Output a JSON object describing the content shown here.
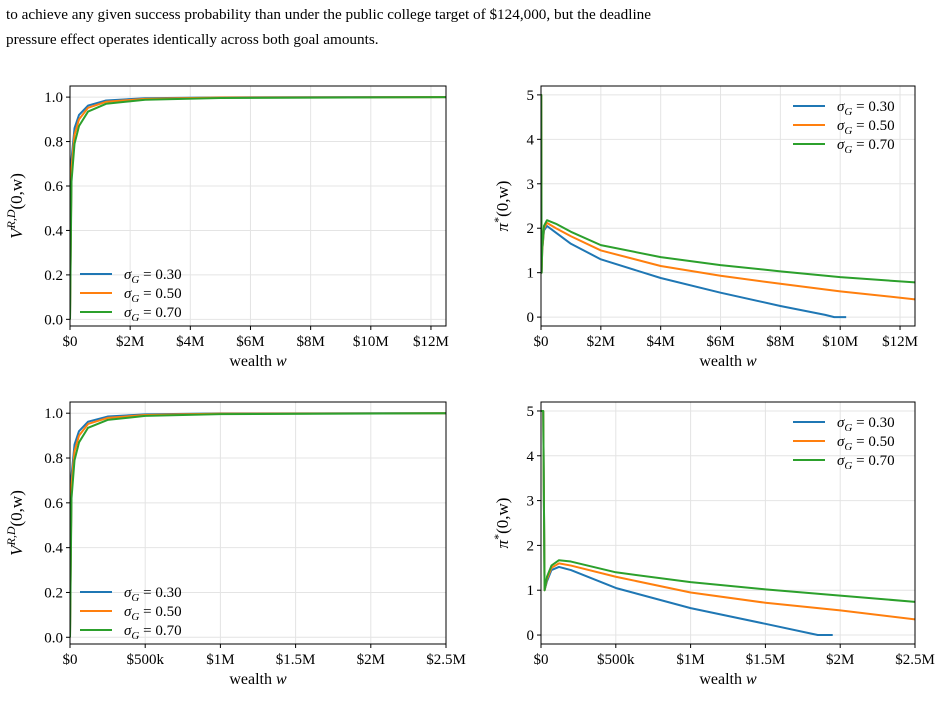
{
  "paragraph": {
    "line1": "to achieve any given success probability than under the public college target of $124,000, but the deadline",
    "line2": "pressure effect operates identically across both goal amounts."
  },
  "colors": {
    "series1": "#1f77b4",
    "series2": "#ff7f0e",
    "series3": "#2ca02c",
    "grid": "#e4e4e4"
  },
  "chart_data": [
    {
      "type": "line",
      "panel": "top-left",
      "xlabel": "wealth w",
      "ylabel": "V^{R,D}(0,w)",
      "xlim": [
        0,
        12500000
      ],
      "ylim": [
        -0.03,
        1.05
      ],
      "xticks": [
        0,
        2000000,
        4000000,
        6000000,
        8000000,
        10000000,
        12000000
      ],
      "xtick_labels": [
        "$0",
        "$2M",
        "$4M",
        "$6M",
        "$8M",
        "$10M",
        "$12M"
      ],
      "yticks": [
        0,
        0.2,
        0.4,
        0.6,
        0.8,
        1.0
      ],
      "ytick_labels": [
        "0.0",
        "0.2",
        "0.4",
        "0.6",
        "0.8",
        "1.0"
      ],
      "grid": true,
      "legend": "lower-left",
      "series": [
        {
          "name": "σ_G = 0.30",
          "x": [
            0,
            50000,
            150000,
            300000,
            600000,
            1200000,
            2500000,
            5000000,
            12500000
          ],
          "y": [
            0,
            0.72,
            0.86,
            0.92,
            0.962,
            0.985,
            0.995,
            0.999,
            1.0
          ]
        },
        {
          "name": "σ_G = 0.50",
          "x": [
            0,
            50000,
            150000,
            300000,
            600000,
            1200000,
            2500000,
            5000000,
            12500000
          ],
          "y": [
            0,
            0.68,
            0.83,
            0.9,
            0.952,
            0.979,
            0.992,
            0.998,
            1.0
          ]
        },
        {
          "name": "σ_G = 0.70",
          "x": [
            0,
            50000,
            150000,
            300000,
            600000,
            1200000,
            2500000,
            5000000,
            12500000
          ],
          "y": [
            0,
            0.62,
            0.79,
            0.87,
            0.935,
            0.97,
            0.988,
            0.996,
            1.0
          ]
        }
      ]
    },
    {
      "type": "line",
      "panel": "top-right",
      "xlabel": "wealth w",
      "ylabel": "π*(0,w)",
      "xlim": [
        0,
        12500000
      ],
      "ylim": [
        -0.2,
        5.2
      ],
      "xticks": [
        0,
        2000000,
        4000000,
        6000000,
        8000000,
        10000000,
        12000000
      ],
      "xtick_labels": [
        "$0",
        "$2M",
        "$4M",
        "$6M",
        "$8M",
        "$10M",
        "$12M"
      ],
      "yticks": [
        0,
        1,
        2,
        3,
        4,
        5
      ],
      "ytick_labels": [
        "0",
        "1",
        "2",
        "3",
        "4",
        "5"
      ],
      "grid": true,
      "legend": "upper-right",
      "series": [
        {
          "name": "σ_G = 0.30",
          "x": [
            0,
            8000,
            20000,
            40000,
            100000,
            200000,
            500000,
            1000000,
            2000000,
            4000000,
            6000000,
            8000000,
            9500000,
            9800000,
            10200000
          ],
          "y": [
            5.0,
            5.0,
            1.0,
            1.5,
            1.95,
            2.05,
            1.9,
            1.65,
            1.3,
            0.88,
            0.55,
            0.25,
            0.05,
            0.0,
            0.0
          ]
        },
        {
          "name": "σ_G = 0.50",
          "x": [
            0,
            8000,
            20000,
            40000,
            100000,
            200000,
            500000,
            1000000,
            2000000,
            4000000,
            6000000,
            8000000,
            10000000,
            12500000
          ],
          "y": [
            5.0,
            5.0,
            1.0,
            1.5,
            2.0,
            2.12,
            2.0,
            1.82,
            1.5,
            1.15,
            0.93,
            0.75,
            0.58,
            0.4
          ]
        },
        {
          "name": "σ_G = 0.70",
          "x": [
            0,
            8000,
            20000,
            40000,
            100000,
            200000,
            500000,
            1000000,
            2000000,
            4000000,
            6000000,
            8000000,
            10000000,
            12500000
          ],
          "y": [
            5.0,
            5.0,
            1.0,
            1.55,
            2.05,
            2.18,
            2.1,
            1.92,
            1.62,
            1.35,
            1.17,
            1.03,
            0.9,
            0.78
          ]
        }
      ]
    },
    {
      "type": "line",
      "panel": "bottom-left",
      "xlabel": "wealth w",
      "ylabel": "V^{R,D}(0,w)",
      "xlim": [
        0,
        2500000
      ],
      "ylim": [
        -0.03,
        1.05
      ],
      "xticks": [
        0,
        500000,
        1000000,
        1500000,
        2000000,
        2500000
      ],
      "xtick_labels": [
        "$0",
        "$500k",
        "$1M",
        "$1.5M",
        "$2M",
        "$2.5M"
      ],
      "yticks": [
        0,
        0.2,
        0.4,
        0.6,
        0.8,
        1.0
      ],
      "ytick_labels": [
        "0.0",
        "0.2",
        "0.4",
        "0.6",
        "0.8",
        "1.0"
      ],
      "grid": true,
      "legend": "lower-left",
      "series": [
        {
          "name": "σ_G = 0.30",
          "x": [
            0,
            10000,
            30000,
            60000,
            120000,
            250000,
            500000,
            1000000,
            2500000
          ],
          "y": [
            0,
            0.72,
            0.86,
            0.92,
            0.962,
            0.985,
            0.995,
            0.999,
            1.0
          ]
        },
        {
          "name": "σ_G = 0.50",
          "x": [
            0,
            10000,
            30000,
            60000,
            120000,
            250000,
            500000,
            1000000,
            2500000
          ],
          "y": [
            0,
            0.68,
            0.83,
            0.9,
            0.952,
            0.979,
            0.992,
            0.998,
            1.0
          ]
        },
        {
          "name": "σ_G = 0.70",
          "x": [
            0,
            10000,
            30000,
            60000,
            120000,
            250000,
            500000,
            1000000,
            2500000
          ],
          "y": [
            0,
            0.62,
            0.79,
            0.87,
            0.935,
            0.97,
            0.988,
            0.996,
            1.0
          ]
        }
      ]
    },
    {
      "type": "line",
      "panel": "bottom-right",
      "xlabel": "wealth w",
      "ylabel": "π*(0,w)",
      "xlim": [
        0,
        2500000
      ],
      "ylim": [
        -0.2,
        5.2
      ],
      "xticks": [
        0,
        500000,
        1000000,
        1500000,
        2000000,
        2500000
      ],
      "xtick_labels": [
        "$0",
        "$500k",
        "$1M",
        "$1.5M",
        "$2M",
        "$2.5M"
      ],
      "yticks": [
        0,
        1,
        2,
        3,
        4,
        5
      ],
      "ytick_labels": [
        "0",
        "1",
        "2",
        "3",
        "4",
        "5"
      ],
      "grid": true,
      "legend": "upper-right",
      "series": [
        {
          "name": "σ_G = 0.30",
          "x": [
            0,
            15000,
            24000,
            40000,
            70000,
            120000,
            200000,
            500000,
            1000000,
            1500000,
            1850000,
            1950000
          ],
          "y": [
            5.0,
            5.0,
            1.0,
            1.2,
            1.45,
            1.52,
            1.45,
            1.05,
            0.6,
            0.25,
            0.0,
            0.0
          ]
        },
        {
          "name": "σ_G = 0.50",
          "x": [
            0,
            15000,
            24000,
            40000,
            70000,
            120000,
            200000,
            500000,
            1000000,
            1500000,
            2000000,
            2500000
          ],
          "y": [
            5.0,
            5.0,
            1.0,
            1.25,
            1.5,
            1.6,
            1.55,
            1.3,
            0.95,
            0.72,
            0.55,
            0.35
          ]
        },
        {
          "name": "σ_G = 0.70",
          "x": [
            0,
            15000,
            24000,
            40000,
            70000,
            120000,
            200000,
            500000,
            1000000,
            1500000,
            2000000,
            2500000
          ],
          "y": [
            5.0,
            5.0,
            1.0,
            1.3,
            1.55,
            1.67,
            1.64,
            1.4,
            1.18,
            1.02,
            0.88,
            0.74
          ]
        }
      ]
    }
  ]
}
